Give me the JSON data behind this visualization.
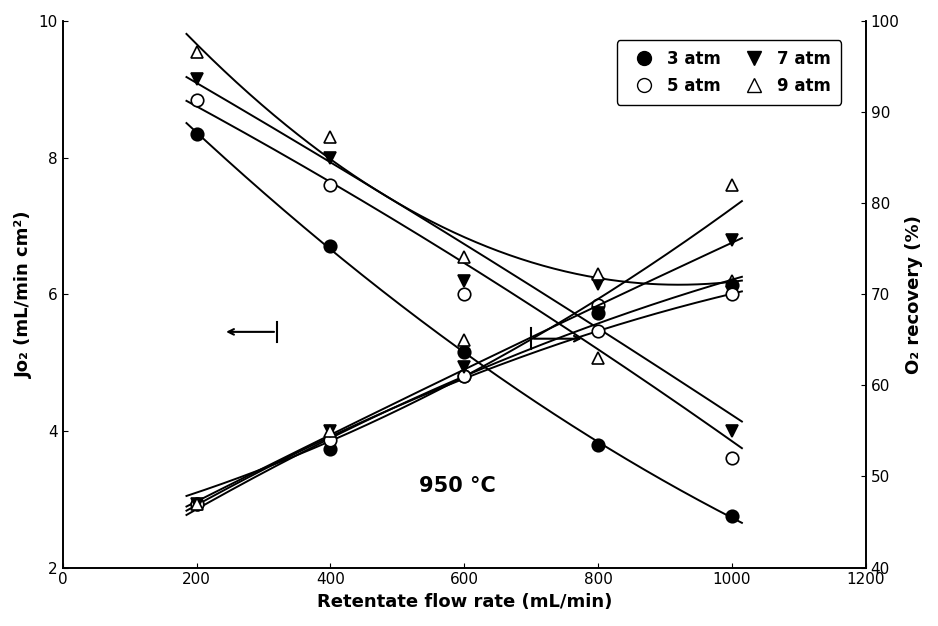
{
  "title": "950 °C",
  "xlabel": "Retentate flow rate (mL/min)",
  "ylabel_left": "Jo₂ (mL/min cm²)",
  "ylabel_right": "O₂ recovery (%)",
  "xlim": [
    0,
    1200
  ],
  "ylim_left": [
    2,
    10
  ],
  "ylim_right": [
    40,
    100
  ],
  "xticks": [
    0,
    200,
    400,
    600,
    800,
    1000,
    1200
  ],
  "yticks_left": [
    2,
    4,
    6,
    8,
    10
  ],
  "yticks_right": [
    40,
    50,
    60,
    70,
    80,
    90,
    100
  ],
  "jo2_3atm": {
    "x": [
      200,
      400,
      600,
      800,
      1000
    ],
    "y": [
      8.35,
      6.7,
      5.15,
      3.8,
      2.75
    ]
  },
  "jo2_5atm": {
    "x": [
      200,
      400,
      600,
      800,
      1000
    ],
    "y": [
      8.85,
      7.6,
      6.0,
      5.85,
      3.6
    ]
  },
  "jo2_7atm": {
    "x": [
      200,
      400,
      600,
      800,
      1000
    ],
    "y": [
      9.15,
      8.0,
      6.2,
      6.15,
      4.0
    ]
  },
  "jo2_9atm": {
    "x": [
      200,
      400,
      600,
      800,
      1000
    ],
    "y": [
      9.55,
      8.3,
      6.55,
      6.3,
      6.2
    ]
  },
  "rec_3atm": {
    "x": [
      200,
      400,
      600,
      800,
      1000
    ],
    "y": [
      47,
      53,
      61,
      68,
      71
    ]
  },
  "rec_5atm": {
    "x": [
      200,
      400,
      600,
      800,
      1000
    ],
    "y": [
      47,
      54,
      61,
      66,
      70
    ]
  },
  "rec_7atm": {
    "x": [
      200,
      400,
      600,
      800,
      1000
    ],
    "y": [
      47,
      55,
      62,
      68,
      76
    ]
  },
  "rec_9atm": {
    "x": [
      200,
      400,
      600,
      800,
      1000
    ],
    "y": [
      47,
      55,
      65,
      63,
      82
    ]
  },
  "background_color": "#ffffff"
}
